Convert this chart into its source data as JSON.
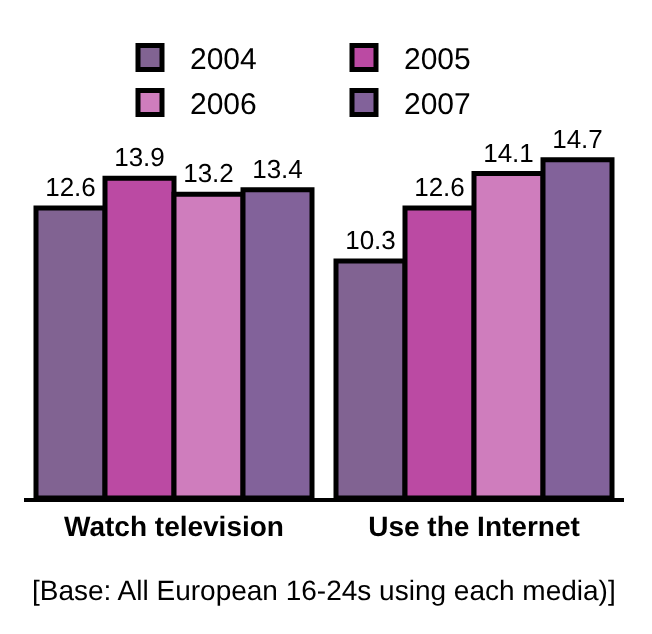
{
  "chart_data": {
    "type": "bar",
    "categories": [
      "Watch television",
      "Use the Internet"
    ],
    "series": [
      {
        "name": "2004",
        "color": "#816392",
        "values": [
          12.6,
          10.3
        ]
      },
      {
        "name": "2005",
        "color": "#bb4aa3",
        "values": [
          13.9,
          12.6
        ]
      },
      {
        "name": "2006",
        "color": "#cf7dbd",
        "values": [
          13.2,
          14.1
        ]
      },
      {
        "name": "2007",
        "color": "#82629a",
        "values": [
          13.4,
          14.7
        ]
      }
    ],
    "data_labels": true,
    "legend": "top",
    "grid": false,
    "annotations": [
      "[Base: All European 16-24s using each media)]"
    ]
  }
}
